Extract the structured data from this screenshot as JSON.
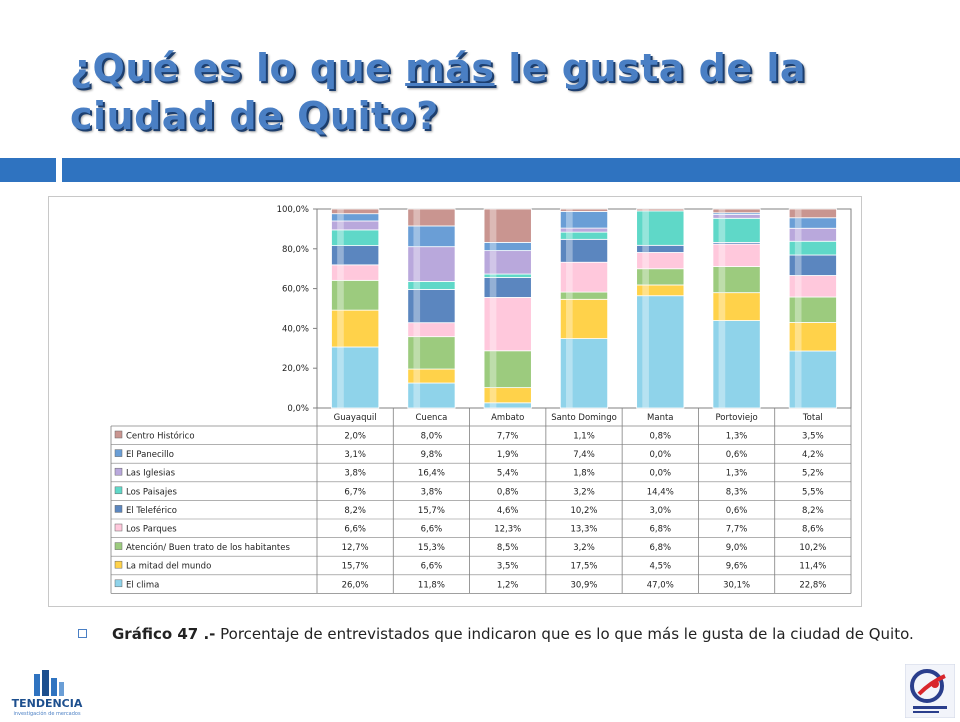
{
  "slide": {
    "title_before": "¿Qué es lo que ",
    "title_emph": "más",
    "title_after": " le gusta de la ciudad de Quito?",
    "caption_bold": "Gráfico 47 .-",
    "caption_rest": " Porcentaje de entrevistados que indicaron que es lo que más le gusta de la ciudad de Quito.",
    "logo_left_text": "TENDENCIA",
    "logo_left_sub": "investigación de mercados"
  },
  "colors": {
    "accent": "#2f73c0",
    "title": "#4a7fc4"
  },
  "chart_data": {
    "type": "bar",
    "stacked": true,
    "percent_stacked": true,
    "categories": [
      "Guayaquil",
      "Cuenca",
      "Ambato",
      "Santo Domingo",
      "Manta",
      "Portoviejo",
      "Total"
    ],
    "y_ticks": [
      "0,0%",
      "20,0%",
      "40,0%",
      "60,0%",
      "80,0%",
      "100,0%"
    ],
    "ylim": [
      0,
      100
    ],
    "grid": false,
    "legend": "table-below",
    "series": [
      {
        "name": "El clima",
        "color": "#8fd3ea",
        "values": [
          26.0,
          11.8,
          1.2,
          30.9,
          47.0,
          30.1,
          22.8
        ],
        "labels": [
          "26,0%",
          "11,8%",
          "1,2%",
          "30,9%",
          "47,0%",
          "30,1%",
          "22,8%"
        ]
      },
      {
        "name": "La mitad del mundo",
        "color": "#ffd24a",
        "values": [
          15.7,
          6.6,
          3.5,
          17.5,
          4.5,
          9.6,
          11.4
        ],
        "labels": [
          "15,7%",
          "6,6%",
          "3,5%",
          "17,5%",
          "4,5%",
          "9,6%",
          "11,4%"
        ]
      },
      {
        "name": "Atención/ Buen trato de los habitantes",
        "color": "#9ccb7e",
        "values": [
          12.7,
          15.3,
          8.5,
          3.2,
          6.8,
          9.0,
          10.2
        ],
        "labels": [
          "12,7%",
          "15,3%",
          "8,5%",
          "3,2%",
          "6,8%",
          "9,0%",
          "10,2%"
        ]
      },
      {
        "name": "Los Parques",
        "color": "#ffc8dc",
        "values": [
          6.6,
          6.6,
          12.3,
          13.3,
          6.8,
          7.7,
          8.6
        ],
        "labels": [
          "6,6%",
          "6,6%",
          "12,3%",
          "13,3%",
          "6,8%",
          "7,7%",
          "8,6%"
        ]
      },
      {
        "name": "El Teleférico",
        "color": "#5b86bf",
        "values": [
          8.2,
          15.7,
          4.6,
          10.2,
          3.0,
          0.6,
          8.2
        ],
        "labels": [
          "8,2%",
          "15,7%",
          "4,6%",
          "10,2%",
          "3,0%",
          "0,6%",
          "8,2%"
        ]
      },
      {
        "name": "Los Paisajes",
        "color": "#5fd8c8",
        "values": [
          6.7,
          3.8,
          0.8,
          3.2,
          14.4,
          8.3,
          5.5
        ],
        "labels": [
          "6,7%",
          "3,8%",
          "0,8%",
          "3,2%",
          "14,4%",
          "8,3%",
          "5,5%"
        ]
      },
      {
        "name": "Las Iglesias",
        "color": "#b9a8dc",
        "values": [
          3.8,
          16.4,
          5.4,
          1.8,
          0.0,
          1.3,
          5.2
        ],
        "labels": [
          "3,8%",
          "16,4%",
          "5,4%",
          "1,8%",
          "0,0%",
          "1,3%",
          "5,2%"
        ]
      },
      {
        "name": "El Panecillo",
        "color": "#6a9ed6",
        "values": [
          3.1,
          9.8,
          1.9,
          7.4,
          0.0,
          0.6,
          4.2
        ],
        "labels": [
          "3,1%",
          "9,8%",
          "1,9%",
          "7,4%",
          "0,0%",
          "0,6%",
          "4,2%"
        ]
      },
      {
        "name": "Centro Histórico",
        "color": "#c99590",
        "values": [
          2.0,
          8.0,
          7.7,
          1.1,
          0.8,
          1.3,
          3.5
        ],
        "labels": [
          "2,0%",
          "8,0%",
          "7,7%",
          "1,1%",
          "0,8%",
          "1,3%",
          "3,5%"
        ]
      }
    ]
  }
}
